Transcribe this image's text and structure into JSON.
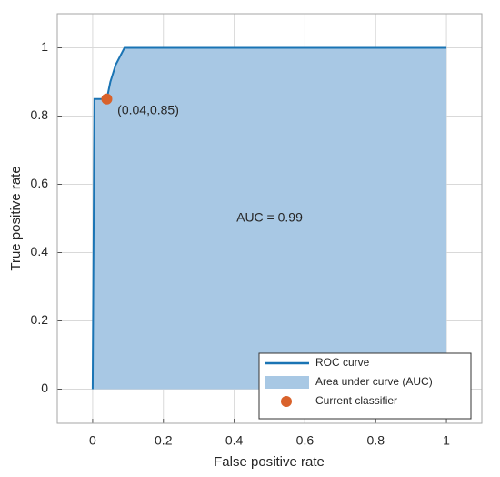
{
  "chart_data": {
    "type": "roc",
    "xlabel": "False positive rate",
    "ylabel": "True positive rate",
    "xlim": [
      -0.1,
      1.1
    ],
    "ylim": [
      -0.1,
      1.1
    ],
    "xticks": [
      0,
      0.2,
      0.4,
      0.6,
      0.8,
      1
    ],
    "yticks": [
      0,
      0.2,
      0.4,
      0.6,
      0.8,
      1
    ],
    "grid": true,
    "legend": "lower right",
    "series": [
      {
        "name": "ROC curve",
        "color": "#1a74b4",
        "x": [
          0,
          0.005,
          0.04,
          0.05,
          0.065,
          0.09,
          1
        ],
        "values": [
          0,
          0.85,
          0.85,
          0.9,
          0.95,
          1,
          1
        ]
      }
    ],
    "area": {
      "name": "Area under curve (AUC)",
      "color": "#a8c8e4"
    },
    "point": {
      "name": "Current classifier",
      "color": "#d9622b",
      "x": 0.04,
      "y": 0.85
    },
    "annotations": [
      {
        "text": "(0.04,0.85)",
        "x": 0.07,
        "y": 0.815
      },
      {
        "text": "AUC = 0.99",
        "x": 0.5,
        "y": 0.5
      }
    ]
  }
}
